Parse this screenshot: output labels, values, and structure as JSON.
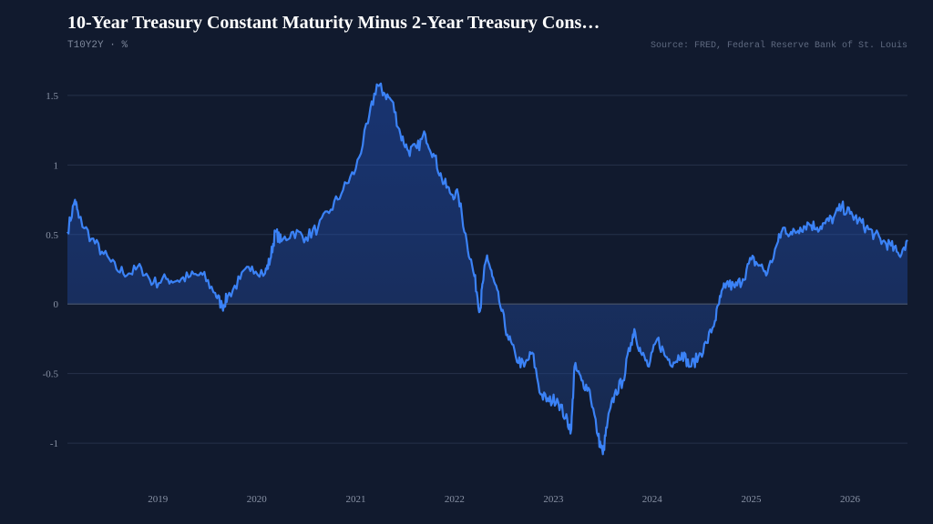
{
  "header": {
    "title": "10-Year Treasury Constant Maturity Minus 2-Year Treasury Cons…",
    "series_id": "T10Y2Y",
    "separator": "·",
    "unit": "%",
    "subtitle": "T10Y2Y · %",
    "source": "Source: FRED, Federal Reserve Bank of St. Louis"
  },
  "colors": {
    "background": "#111a2e",
    "line": "#3b82f6",
    "grid": "#26324a",
    "zero_line": "#3d4a63"
  },
  "chart_data": {
    "type": "area",
    "title": "10-Year Treasury Constant Maturity Minus 2-Year Treasury Cons…",
    "ylabel": "%",
    "xlabel": "",
    "xlim": [
      "2018-02-01",
      "2026-08-01"
    ],
    "ylim": [
      -1.15,
      1.65
    ],
    "y_ticks": [
      {
        "value": 1.5,
        "label": "1.5"
      },
      {
        "value": 1,
        "label": "1"
      },
      {
        "value": 0.5,
        "label": "0.5"
      },
      {
        "value": 0,
        "label": "0"
      },
      {
        "value": -0.5,
        "label": "-0.5"
      },
      {
        "value": -1,
        "label": "-1"
      }
    ],
    "x_ticks": [
      {
        "value": "2019-01-01",
        "label": "2019"
      },
      {
        "value": "2020-01-01",
        "label": "2020"
      },
      {
        "value": "2021-01-01",
        "label": "2021"
      },
      {
        "value": "2022-01-01",
        "label": "2022"
      },
      {
        "value": "2023-01-01",
        "label": "2023"
      },
      {
        "value": "2024-01-01",
        "label": "2024"
      },
      {
        "value": "2025-01-01",
        "label": "2025"
      },
      {
        "value": "2026-01-01",
        "label": "2026"
      }
    ],
    "grid": true,
    "legend": "none",
    "series": [
      {
        "x": [
          "2018-02-01",
          "2018-03-01",
          "2018-03-15",
          "2018-05-01",
          "2018-06-15",
          "2018-08-01",
          "2018-09-15",
          "2018-11-01",
          "2018-12-15",
          "2019-02-01",
          "2019-03-15",
          "2019-05-01",
          "2019-06-15",
          "2019-08-01",
          "2019-08-27",
          "2019-09-15",
          "2019-11-01",
          "2019-12-15",
          "2020-02-01",
          "2020-02-20",
          "2020-03-10",
          "2020-04-01",
          "2020-05-15",
          "2020-07-01",
          "2020-08-15",
          "2020-10-01",
          "2020-11-15",
          "2021-01-01",
          "2021-02-15",
          "2021-03-20",
          "2021-04-15",
          "2021-05-15",
          "2021-06-15",
          "2021-07-15",
          "2021-08-15",
          "2021-09-15",
          "2021-10-15",
          "2021-11-15",
          "2021-12-15",
          "2022-01-15",
          "2022-02-15",
          "2022-03-15",
          "2022-04-05",
          "2022-04-15",
          "2022-05-01",
          "2022-05-20",
          "2022-06-15",
          "2022-07-15",
          "2022-08-15",
          "2022-09-15",
          "2022-10-15",
          "2022-11-15",
          "2022-12-15",
          "2023-01-15",
          "2023-02-15",
          "2023-03-08",
          "2023-03-20",
          "2023-04-15",
          "2023-05-15",
          "2023-06-15",
          "2023-07-03",
          "2023-07-20",
          "2023-08-15",
          "2023-09-15",
          "2023-10-15",
          "2023-10-27",
          "2023-11-20",
          "2023-12-20",
          "2024-01-20",
          "2024-02-20",
          "2024-03-20",
          "2024-04-20",
          "2024-05-20",
          "2024-06-20",
          "2024-07-20",
          "2024-08-20",
          "2024-09-10",
          "2024-10-01",
          "2024-11-01",
          "2024-12-01",
          "2025-01-01",
          "2025-02-01",
          "2025-03-01",
          "2025-04-10",
          "2025-05-01",
          "2025-06-01",
          "2025-07-01",
          "2025-08-01",
          "2025-09-01",
          "2025-10-01",
          "2025-11-01",
          "2025-12-01",
          "2026-01-01",
          "2026-02-01",
          "2026-03-01",
          "2026-04-01",
          "2026-05-01",
          "2026-06-01",
          "2026-07-01",
          "2026-08-01"
        ],
        "y": [
          0.52,
          0.75,
          0.62,
          0.47,
          0.36,
          0.25,
          0.22,
          0.26,
          0.15,
          0.18,
          0.17,
          0.2,
          0.21,
          0.08,
          -0.02,
          0.05,
          0.18,
          0.27,
          0.22,
          0.32,
          0.52,
          0.45,
          0.52,
          0.48,
          0.55,
          0.68,
          0.82,
          0.97,
          1.3,
          1.58,
          1.52,
          1.46,
          1.22,
          1.1,
          1.12,
          1.22,
          1.08,
          0.9,
          0.8,
          0.78,
          0.45,
          0.2,
          -0.05,
          0.15,
          0.35,
          0.2,
          0.02,
          -0.22,
          -0.38,
          -0.45,
          -0.35,
          -0.65,
          -0.7,
          -0.68,
          -0.82,
          -0.9,
          -0.45,
          -0.55,
          -0.62,
          -0.95,
          -1.08,
          -0.85,
          -0.65,
          -0.55,
          -0.28,
          -0.18,
          -0.35,
          -0.45,
          -0.25,
          -0.38,
          -0.42,
          -0.35,
          -0.45,
          -0.38,
          -0.28,
          -0.12,
          0.05,
          0.15,
          0.12,
          0.18,
          0.32,
          0.28,
          0.22,
          0.45,
          0.55,
          0.5,
          0.55,
          0.58,
          0.55,
          0.58,
          0.62,
          0.7,
          0.65,
          0.6,
          0.55,
          0.5,
          0.45,
          0.42,
          0.35,
          0.46
        ]
      }
    ]
  }
}
